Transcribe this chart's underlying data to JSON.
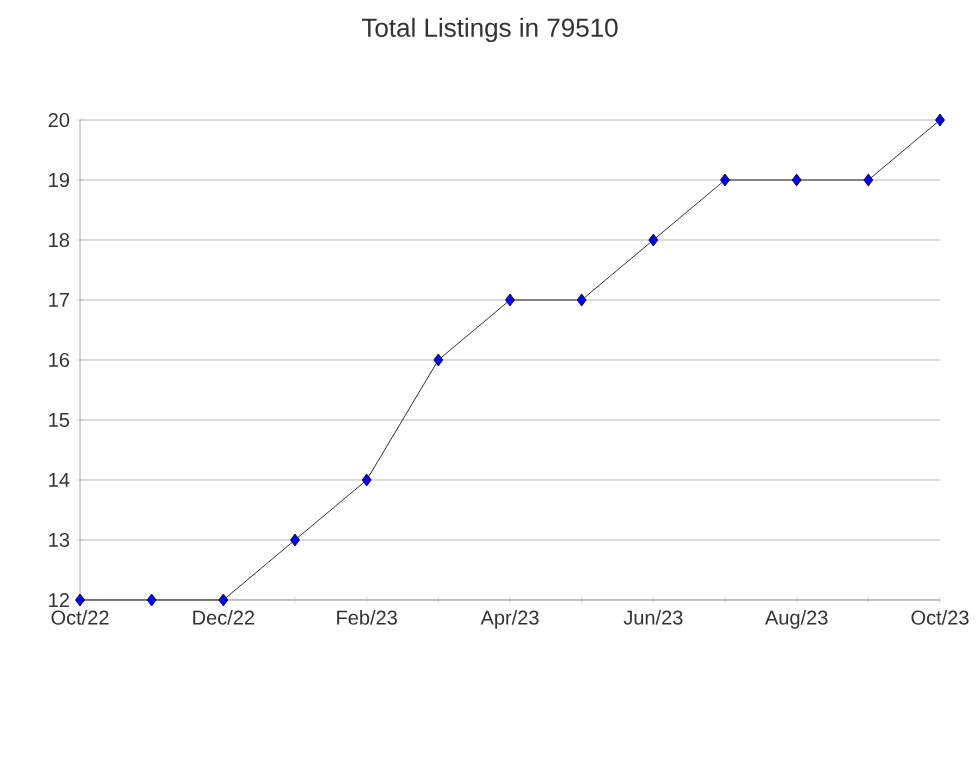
{
  "chart_data": {
    "type": "line",
    "title": "Total Listings in 79510",
    "categories": [
      "Oct/22",
      null,
      "Dec/22",
      null,
      "Feb/23",
      null,
      "Apr/23",
      null,
      "Jun/23",
      null,
      "Aug/23",
      null,
      "Oct/23"
    ],
    "series": [
      {
        "color": "#0000ff",
        "values": [
          12,
          12,
          12,
          13,
          14,
          16,
          17,
          17,
          18,
          19,
          19,
          19,
          20
        ]
      }
    ],
    "ylim": [
      12,
      20
    ],
    "yticks": [
      12,
      13,
      14,
      15,
      16,
      17,
      18,
      19,
      20
    ],
    "grid": "y",
    "marker": "diamond",
    "line_style": "solid"
  }
}
